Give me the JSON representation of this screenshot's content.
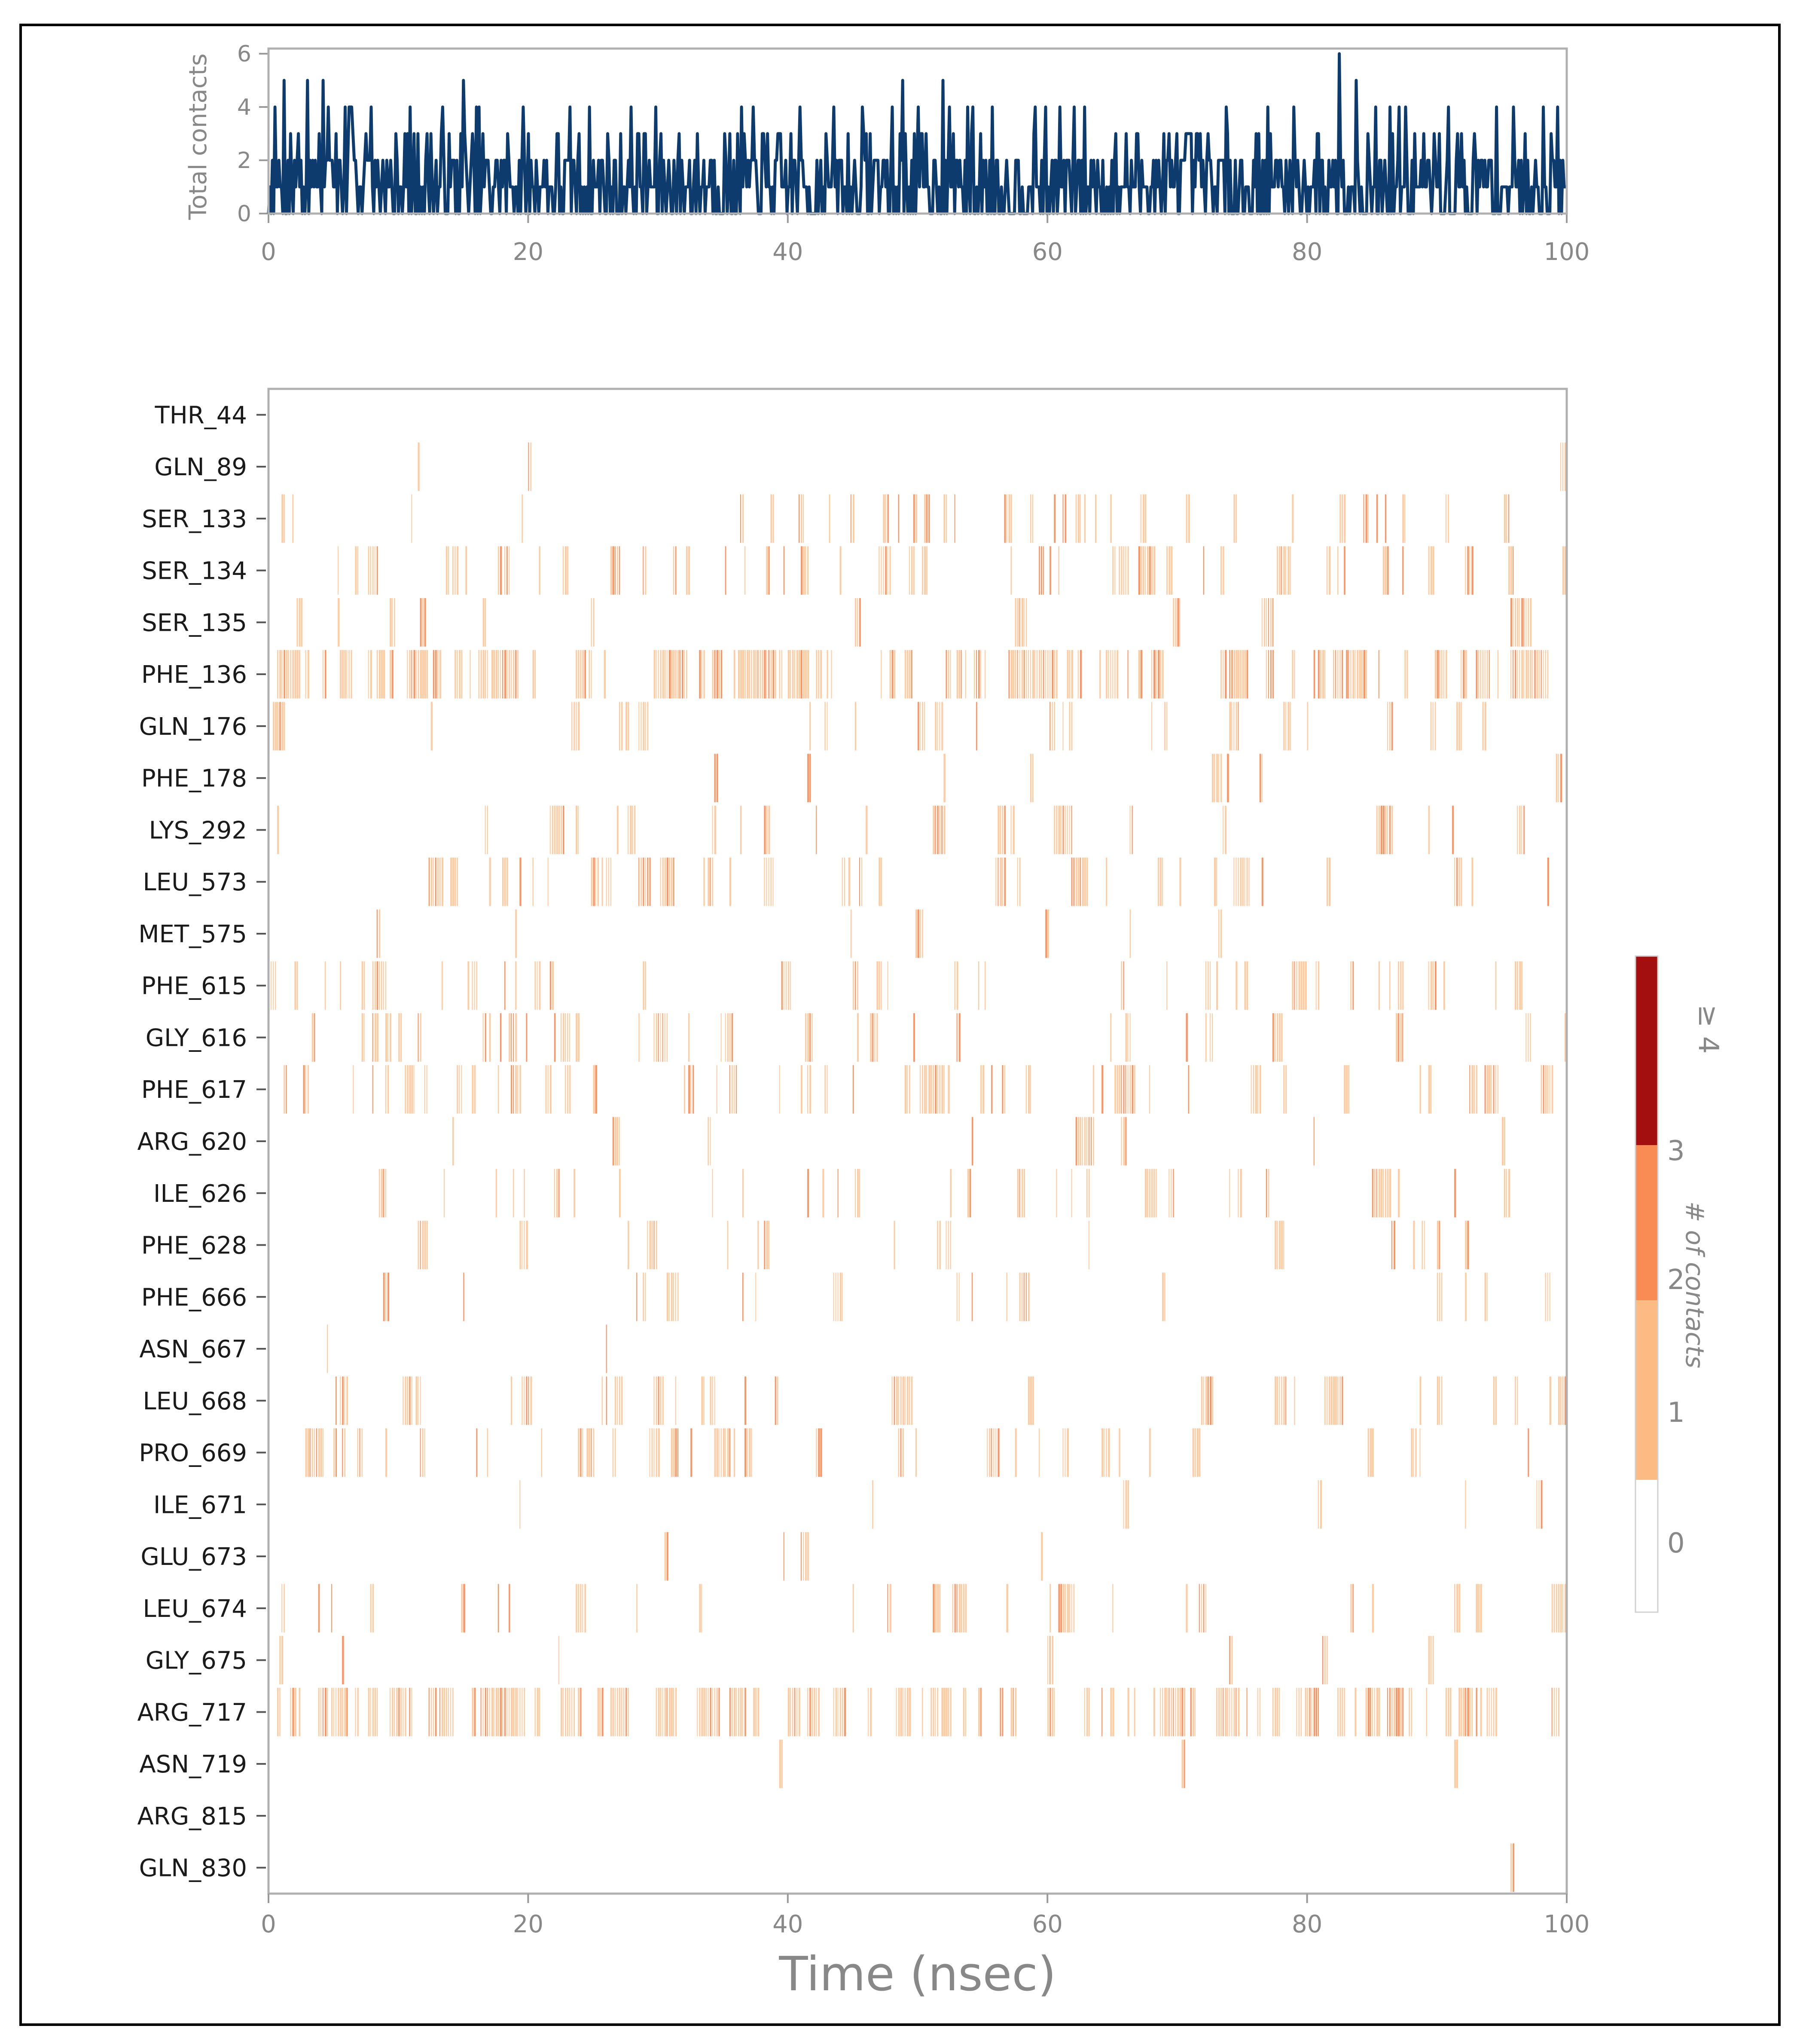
{
  "chart_data": [
    {
      "type": "line",
      "ylabel": "Total contacts",
      "xlim": [
        0,
        100
      ],
      "ylim": [
        0,
        6
      ],
      "yticks": [
        "0",
        "2",
        "4",
        "6"
      ],
      "xticks": [
        "0",
        "20",
        "40",
        "60",
        "80",
        "100"
      ],
      "line_color": "#0d3b6e",
      "sample_count": 1000,
      "peaks": [
        {
          "x": 82.5,
          "y": 6
        },
        {
          "x": 1.2,
          "y": 5
        },
        {
          "x": 3.0,
          "y": 5
        },
        {
          "x": 4.2,
          "y": 5
        },
        {
          "x": 15.0,
          "y": 5
        },
        {
          "x": 48.8,
          "y": 5
        },
        {
          "x": 52.0,
          "y": 5
        },
        {
          "x": 83.8,
          "y": 5
        }
      ]
    },
    {
      "type": "heatmap",
      "xlabel": "Time (nsec)",
      "xlim": [
        0,
        100
      ],
      "xticks": [
        "0",
        "20",
        "40",
        "60",
        "80",
        "100"
      ],
      "colorbar": {
        "label": "# of contacts",
        "levels": [
          {
            "label": "0",
            "color": "#ffffff"
          },
          {
            "label": "1",
            "color": "#fdbb84"
          },
          {
            "label": "2",
            "color": "#f98b55"
          },
          {
            "label": "3",
            "color": "#a30f0f"
          }
        ],
        "top_label": "≥ 4"
      },
      "residues": [
        {
          "name": "THR_44",
          "density": 0.01
        },
        {
          "name": "GLN_89",
          "density": 0.01
        },
        {
          "name": "SER_133",
          "density": 0.12
        },
        {
          "name": "SER_134",
          "density": 0.22
        },
        {
          "name": "SER_135",
          "density": 0.06
        },
        {
          "name": "PHE_136",
          "density": 0.45
        },
        {
          "name": "GLN_176",
          "density": 0.1
        },
        {
          "name": "PHE_178",
          "density": 0.06
        },
        {
          "name": "LYS_292",
          "density": 0.12
        },
        {
          "name": "LEU_573",
          "density": 0.22
        },
        {
          "name": "MET_575",
          "density": 0.04
        },
        {
          "name": "PHE_615",
          "density": 0.2
        },
        {
          "name": "GLY_616",
          "density": 0.16
        },
        {
          "name": "PHE_617",
          "density": 0.32
        },
        {
          "name": "ARG_620",
          "density": 0.02
        },
        {
          "name": "ILE_626",
          "density": 0.12
        },
        {
          "name": "PHE_628",
          "density": 0.07
        },
        {
          "name": "PHE_666",
          "density": 0.09
        },
        {
          "name": "ASN_667",
          "density": 0.01
        },
        {
          "name": "LEU_668",
          "density": 0.15
        },
        {
          "name": "PRO_669",
          "density": 0.18
        },
        {
          "name": "ILE_671",
          "density": 0.01
        },
        {
          "name": "GLU_673",
          "density": 0.03
        },
        {
          "name": "LEU_674",
          "density": 0.1
        },
        {
          "name": "GLY_675",
          "density": 0.06
        },
        {
          "name": "ARG_717",
          "density": 0.5
        },
        {
          "name": "ASN_719",
          "density": 0.01
        },
        {
          "name": "ARG_815",
          "density": 0.01
        },
        {
          "name": "GLN_830",
          "density": 0.01
        }
      ]
    }
  ]
}
